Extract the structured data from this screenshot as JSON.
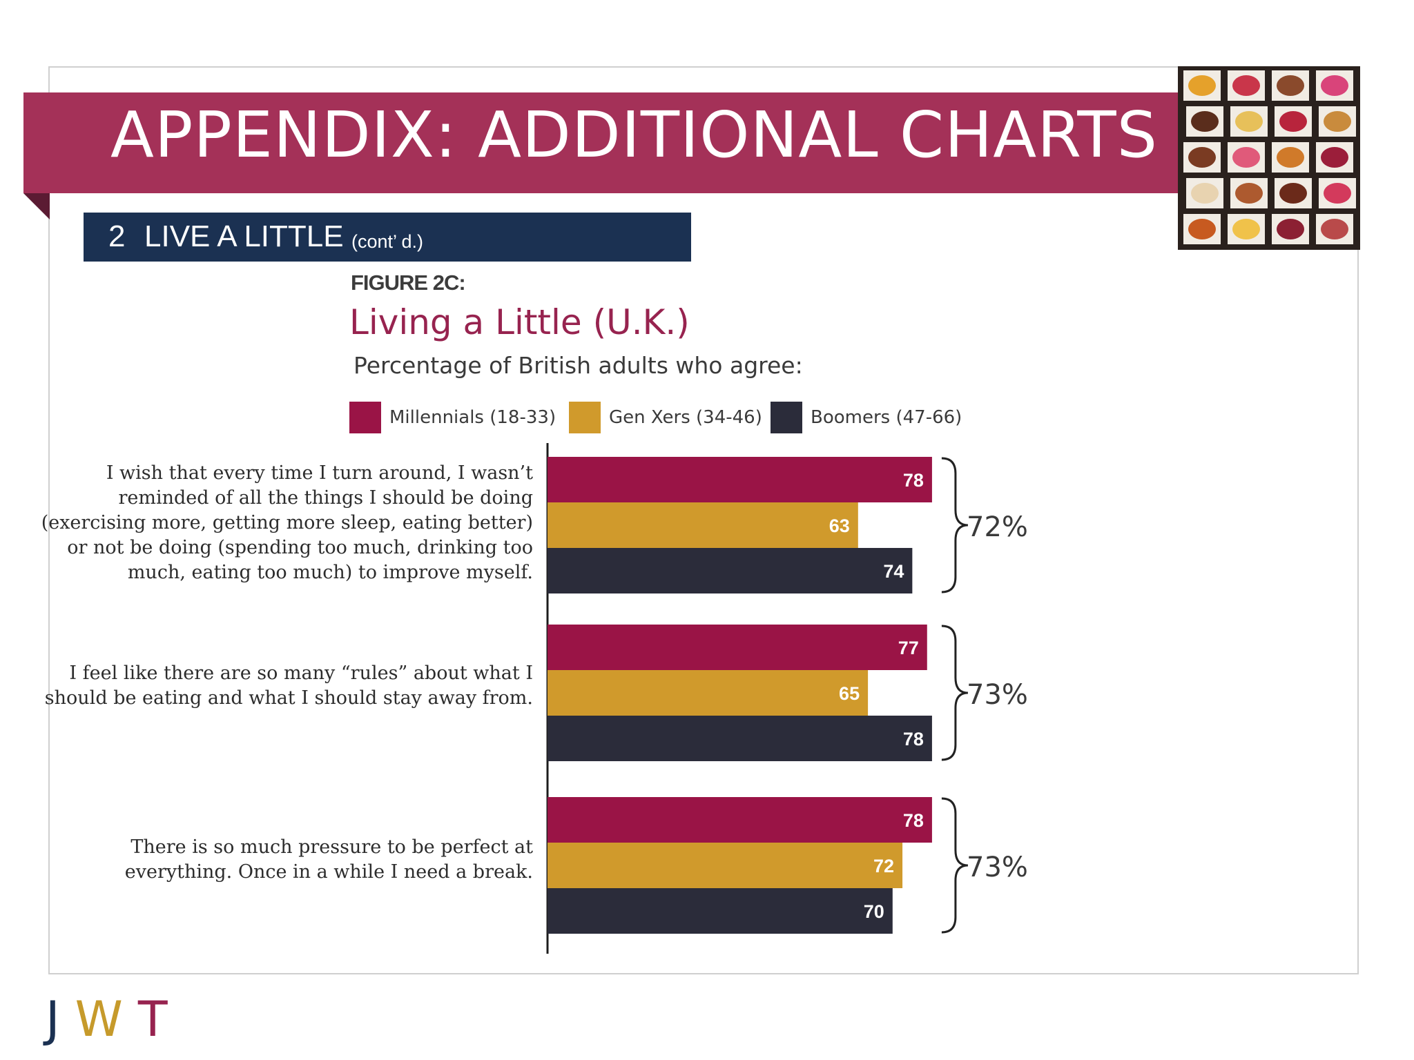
{
  "slide": {
    "title": "APPENDIX: ADDITIONAL CHARTS",
    "section_number": "2",
    "section_title": "LIVE A LITTLE",
    "section_suffix": "(cont’ d.)",
    "logo": "JWT"
  },
  "photo": {
    "description_icon": "chocolate-box-photo"
  },
  "colors": {
    "banner": "#a43158",
    "section_bar": "#1b3152",
    "millennials": "#9a1446",
    "genx": "#d09a2c",
    "boomers": "#2b2c3a"
  },
  "chart_data": {
    "type": "bar",
    "orientation": "horizontal",
    "figure_label": "FIGURE 2C:",
    "title": "Living a Little (U.K.)",
    "subtitle": "Percentage of British adults who agree:",
    "categories": [
      "I wish that every time I turn around, I wasn’t reminded of all the things I should be doing (exercising more, getting more sleep, eating better) or not be doing (spending too much, drinking too much, eating too much) to improve myself.",
      "I feel like there are so many “rules” about what I should be eating and what I should stay away from.",
      "There is so much pressure to be perfect at everything. Once in a while I need a break."
    ],
    "category_lines": [
      [
        "I wish that every time I turn around, I wasn’t",
        "reminded of all the things I should be doing",
        "(exercising more, getting more sleep, eating better)",
        "or not be doing (spending too much, drinking too",
        "much, eating too much) to improve myself."
      ],
      [
        "I feel like there are so many “rules” about what I",
        "should be eating and what I should stay away from."
      ],
      [
        "There is so much pressure to be perfect at",
        "everything. Once in a while I need a break."
      ]
    ],
    "series": [
      {
        "name": "Millennials (18-33)",
        "values": [
          78,
          77,
          78
        ],
        "color": "#9a1446"
      },
      {
        "name": "Gen Xers (34-46)",
        "values": [
          63,
          65,
          72
        ],
        "color": "#d09a2c"
      },
      {
        "name": "Boomers (47-66)",
        "values": [
          74,
          78,
          70
        ],
        "color": "#2b2c3a"
      }
    ],
    "totals": [
      "72%",
      "73%",
      "73%"
    ],
    "xlim": [
      0,
      100
    ],
    "legend_position": "top",
    "grid": false,
    "data_labels": true
  }
}
